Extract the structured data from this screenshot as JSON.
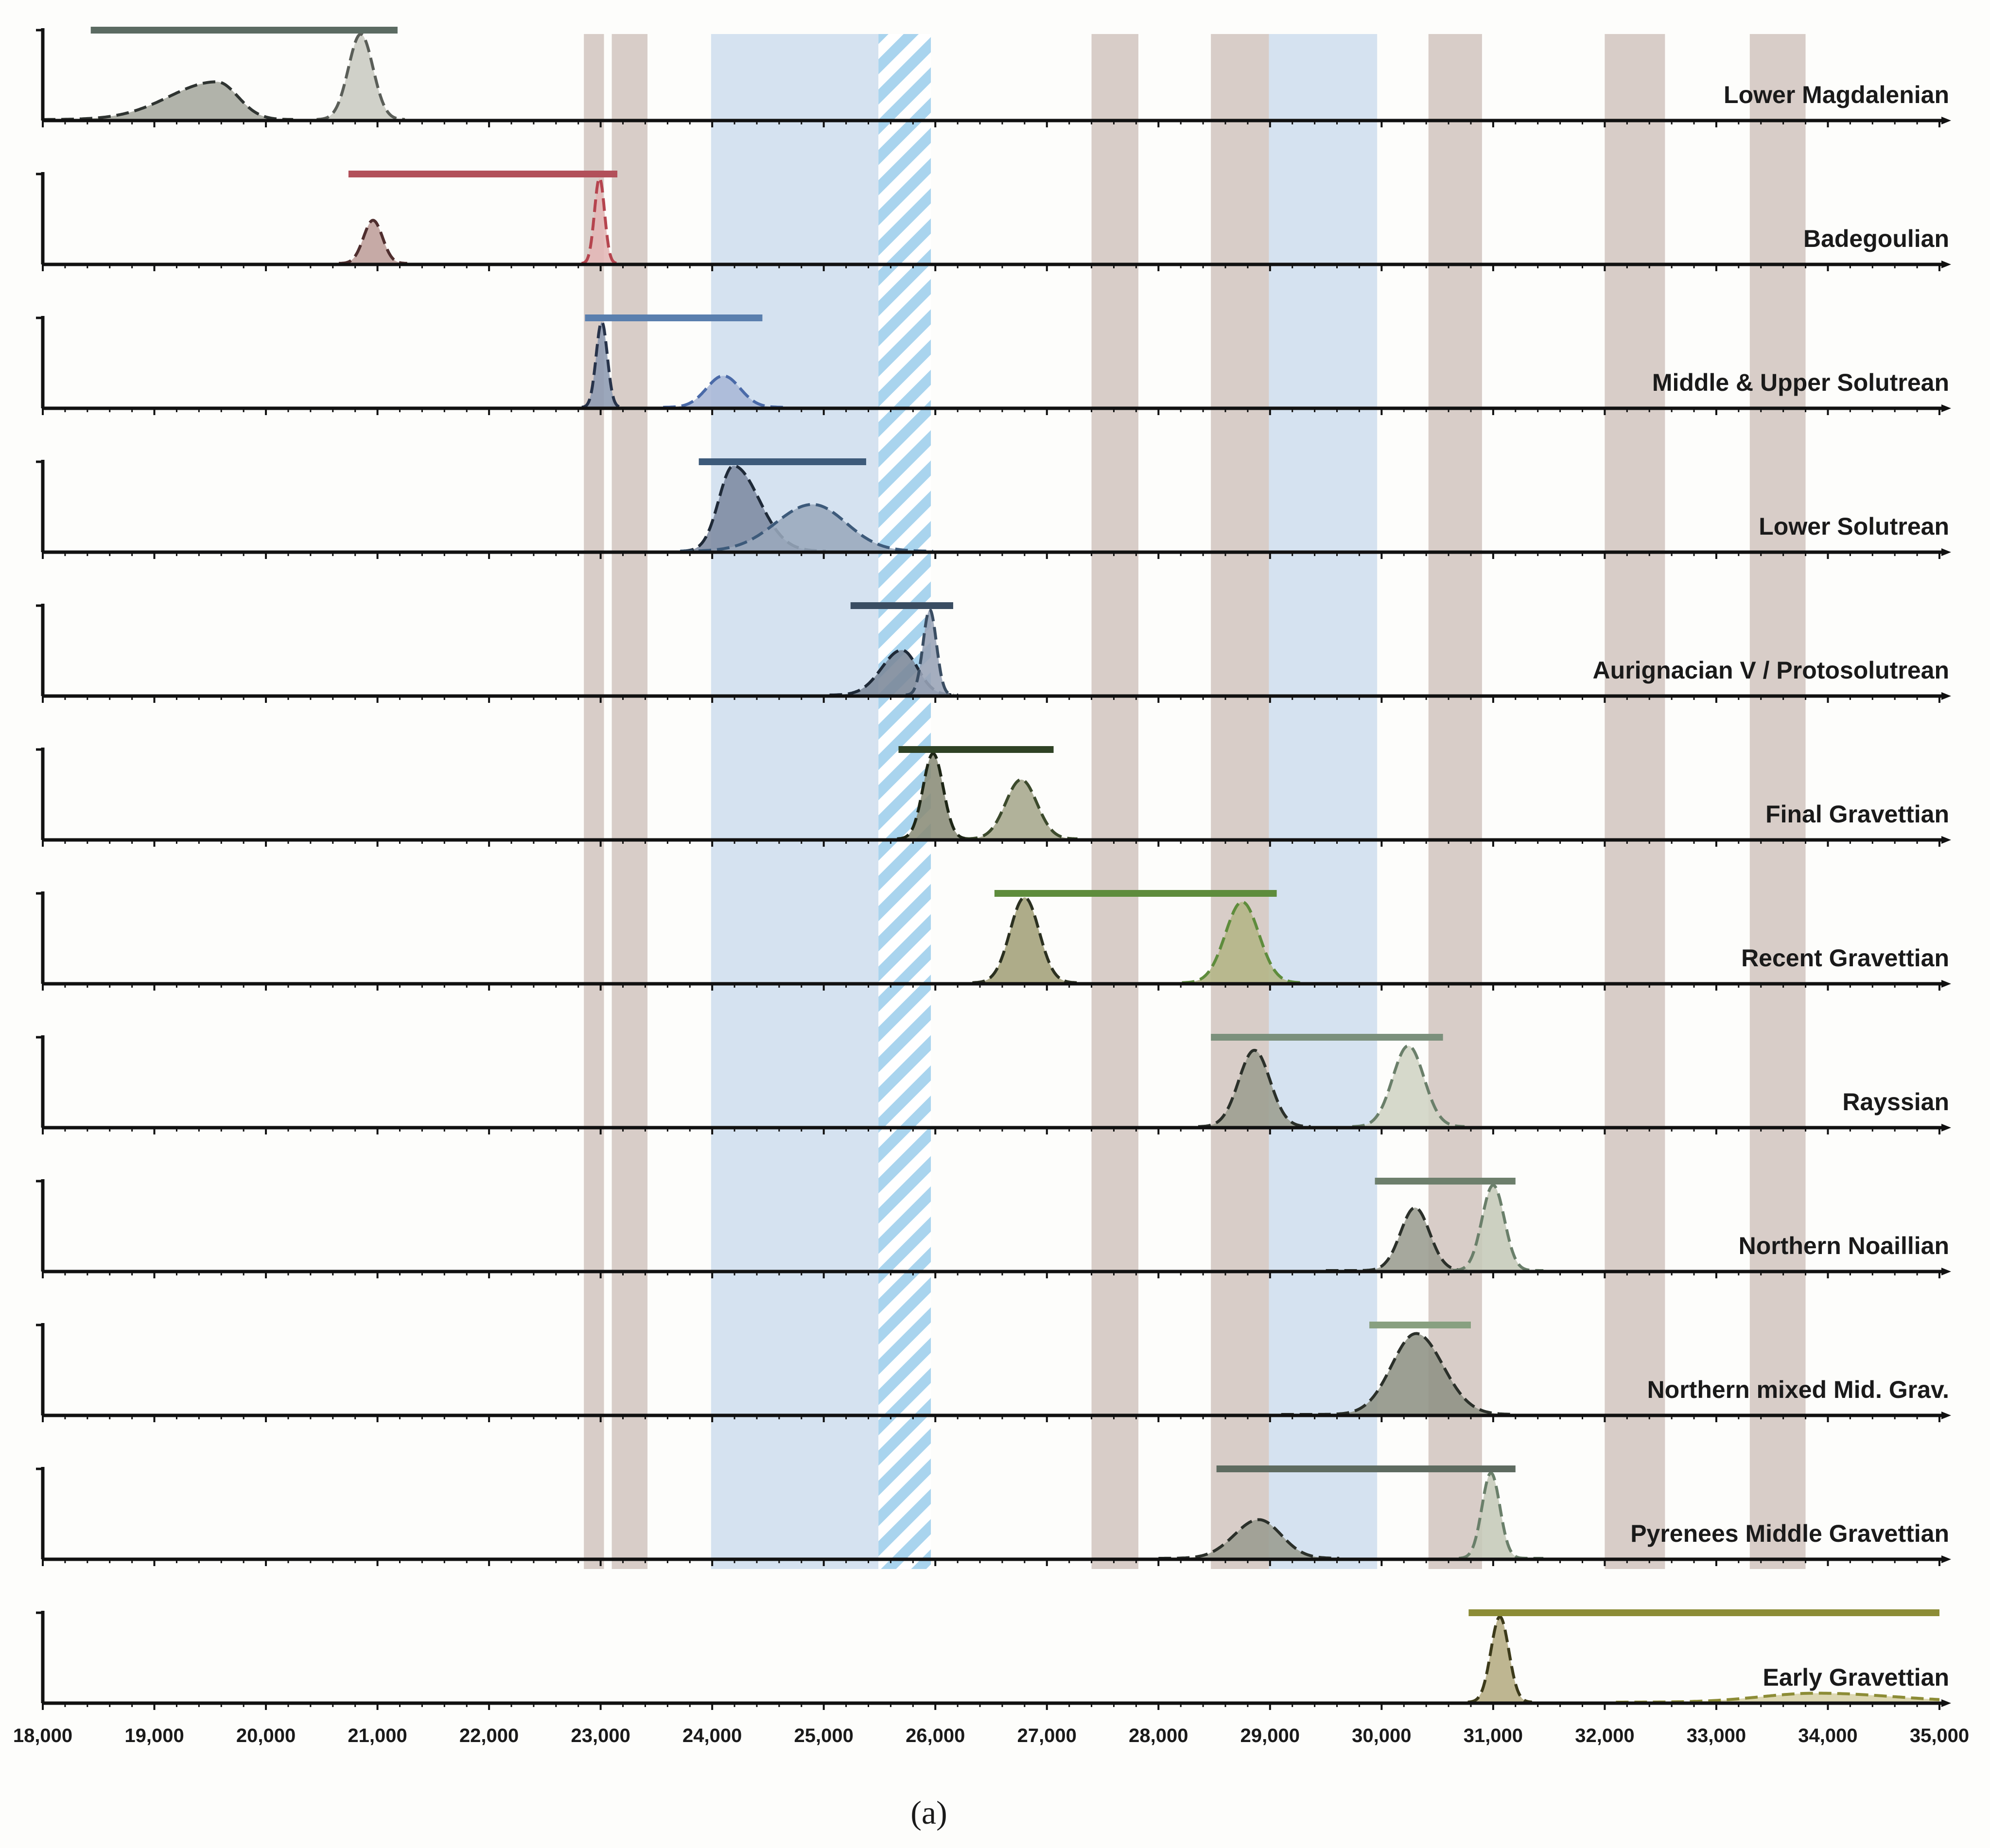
{
  "chart_data": {
    "type": "area",
    "caption": "(a)",
    "x_axis": {
      "min": 18000,
      "max": 35000,
      "ticks": [
        18000,
        19000,
        20000,
        21000,
        22000,
        23000,
        24000,
        25000,
        26000,
        27000,
        28000,
        29000,
        30000,
        31000,
        32000,
        33000,
        34000,
        35000
      ],
      "tick_labels": [
        "18,000",
        "19,000",
        "20,000",
        "21,000",
        "22,000",
        "23,000",
        "24,000",
        "25,000",
        "26,000",
        "27,000",
        "28,000",
        "29,000",
        "30,000",
        "31,000",
        "32,000",
        "33,000",
        "34,000",
        "35,000"
      ],
      "minor_step": 200
    },
    "background_bands": [
      {
        "kind": "stadial",
        "start": 22850,
        "end": 23030,
        "color": "#d8cdc8"
      },
      {
        "kind": "stadial",
        "start": 23100,
        "end": 23420,
        "color": "#d8cdc8"
      },
      {
        "kind": "blue-interval",
        "start": 23990,
        "end": 25490,
        "color": "#d5e2f0"
      },
      {
        "kind": "hatched-interval",
        "start": 25490,
        "end": 25960,
        "color": "#a9d4ee"
      },
      {
        "kind": "stadial",
        "start": 27400,
        "end": 27820,
        "color": "#d8cdc8"
      },
      {
        "kind": "stadial",
        "start": 28470,
        "end": 28990,
        "color": "#d8cdc8"
      },
      {
        "kind": "blue-interval",
        "start": 28990,
        "end": 29960,
        "color": "#d5e2f0"
      },
      {
        "kind": "stadial",
        "start": 30420,
        "end": 30900,
        "color": "#d8cdc8"
      },
      {
        "kind": "stadial",
        "start": 32000,
        "end": 32540,
        "color": "#d8cdc8"
      },
      {
        "kind": "stadial",
        "start": 33300,
        "end": 33800,
        "color": "#d8cdc8"
      }
    ],
    "series": [
      {
        "name": "Lower Magdalenian",
        "bar": {
          "start": 18430,
          "end": 21180,
          "color": "#5b6b62"
        },
        "curves": [
          {
            "peak": 19560,
            "sigma_left": 430,
            "sigma_right": 190,
            "height": 0.42,
            "fill": "#a6a89e",
            "stroke": "#2f3431",
            "tail_start": 18000
          },
          {
            "peak": 20850,
            "sigma_left": 110,
            "sigma_right": 110,
            "height": 0.95,
            "fill": "#c9cbc1",
            "stroke": "#5a5e58"
          }
        ]
      },
      {
        "name": "Badegoulian",
        "bar": {
          "start": 20740,
          "end": 23150,
          "color": "#b2505a"
        },
        "curves": [
          {
            "peak": 20960,
            "sigma_left": 85,
            "sigma_right": 85,
            "height": 0.48,
            "fill": "#be9e9a",
            "stroke": "#4f2e2e"
          },
          {
            "peak": 22990,
            "sigma_left": 45,
            "sigma_right": 45,
            "height": 0.95,
            "fill": "#e2b7b6",
            "stroke": "#b5444e"
          }
        ]
      },
      {
        "name": "Middle & Upper Solutrean",
        "bar": {
          "start": 22860,
          "end": 24450,
          "color": "#5a7fae"
        },
        "curves": [
          {
            "peak": 23010,
            "sigma_left": 50,
            "sigma_right": 50,
            "height": 0.95,
            "fill": "#8d9bb2",
            "stroke": "#27334a"
          },
          {
            "peak": 24100,
            "sigma_left": 150,
            "sigma_right": 150,
            "height": 0.35,
            "fill": "#a8b7d6",
            "stroke": "#4a6aa8"
          }
        ]
      },
      {
        "name": "Lower Solutrean",
        "bar": {
          "start": 23880,
          "end": 25380,
          "color": "#3d5a7a"
        },
        "curves": [
          {
            "peak": 24190,
            "sigma_left": 130,
            "sigma_right": 230,
            "height": 0.95,
            "fill": "#7d8aa0",
            "stroke": "#1f2a38"
          },
          {
            "peak": 24900,
            "sigma_left": 330,
            "sigma_right": 300,
            "height": 0.52,
            "fill": "#9aa8bc",
            "stroke": "#3d5a7a"
          }
        ]
      },
      {
        "name": "Aurignacian V / Protosolutrean",
        "bar": {
          "start": 25240,
          "end": 26160,
          "color": "#3a4d62"
        },
        "curves": [
          {
            "peak": 25700,
            "sigma_left": 180,
            "sigma_right": 140,
            "height": 0.5,
            "fill": "#7b8799",
            "stroke": "#1f2a38"
          },
          {
            "peak": 25950,
            "sigma_left": 60,
            "sigma_right": 60,
            "height": 0.95,
            "fill": "#98a3b6",
            "stroke": "#3a4d62"
          }
        ]
      },
      {
        "name": "Final Gravettian",
        "bar": {
          "start": 25670,
          "end": 27060,
          "color": "#2f4224"
        },
        "curves": [
          {
            "peak": 25980,
            "sigma_left": 90,
            "sigma_right": 90,
            "height": 0.95,
            "fill": "#8a8c78",
            "stroke": "#1e2616"
          },
          {
            "peak": 26770,
            "sigma_left": 140,
            "sigma_right": 140,
            "height": 0.66,
            "fill": "#a6a78c",
            "stroke": "#3c4a2c"
          }
        ]
      },
      {
        "name": "Recent Gravettian",
        "bar": {
          "start": 26530,
          "end": 29060,
          "color": "#5e8c3c"
        },
        "curves": [
          {
            "peak": 26800,
            "sigma_left": 130,
            "sigma_right": 130,
            "height": 0.95,
            "fill": "#a3a179",
            "stroke": "#2b3020"
          },
          {
            "peak": 28750,
            "sigma_left": 150,
            "sigma_right": 150,
            "height": 0.9,
            "fill": "#b3b585",
            "stroke": "#5e8c3c"
          }
        ]
      },
      {
        "name": "Rayssian",
        "bar": {
          "start": 28470,
          "end": 30550,
          "color": "#7b907c"
        },
        "curves": [
          {
            "peak": 28860,
            "sigma_left": 140,
            "sigma_right": 140,
            "height": 0.85,
            "fill": "#9c9e90",
            "stroke": "#2b302a"
          },
          {
            "peak": 30240,
            "sigma_left": 140,
            "sigma_right": 140,
            "height": 0.9,
            "fill": "#d0d4c4",
            "stroke": "#6a7f6a"
          }
        ]
      },
      {
        "name": "Northern Noaillian",
        "bar": {
          "start": 29940,
          "end": 31200,
          "color": "#6d7f6c"
        },
        "curves": [
          {
            "peak": 30300,
            "sigma_left": 130,
            "sigma_right": 130,
            "height": 0.7,
            "fill": "#9a9c90",
            "stroke": "#2b302a",
            "tail_start": 29500
          },
          {
            "peak": 31000,
            "sigma_left": 100,
            "sigma_right": 100,
            "height": 0.95,
            "fill": "#c5c9b8",
            "stroke": "#6a7f6a",
            "tail_end": 31450
          }
        ]
      },
      {
        "name": "Northern mixed Mid. Grav.",
        "bar": {
          "start": 29890,
          "end": 30800,
          "color": "#88a080"
        },
        "curves": [
          {
            "peak": 30310,
            "sigma_left": 220,
            "sigma_right": 240,
            "height": 0.9,
            "fill": "#8e9284",
            "stroke": "#2b302a",
            "tail_start": 29100
          }
        ]
      },
      {
        "name": "Pyrenees Middle Gravettian",
        "bar": {
          "start": 28520,
          "end": 31200,
          "color": "#5e6b60"
        },
        "curves": [
          {
            "peak": 28900,
            "sigma_left": 220,
            "sigma_right": 200,
            "height": 0.43,
            "fill": "#9a9c90",
            "stroke": "#2b302a",
            "tail_start": 28000
          },
          {
            "peak": 30980,
            "sigma_left": 80,
            "sigma_right": 80,
            "height": 0.95,
            "fill": "#c5c9b8",
            "stroke": "#6a7f6a",
            "tail_end": 31450
          }
        ]
      },
      {
        "name": "Early Gravettian",
        "bar": {
          "start": 30780,
          "end": 35000,
          "color": "#8c8c36"
        },
        "curves": [
          {
            "peak": 31060,
            "sigma_left": 80,
            "sigma_right": 80,
            "height": 0.95,
            "fill": "#b5ac82",
            "stroke": "#3c3a1a"
          },
          {
            "peak": 33900,
            "sigma_left": 500,
            "sigma_right": 700,
            "height": 0.1,
            "fill": "#d8d3a8",
            "stroke": "#8c8c36"
          }
        ]
      }
    ]
  }
}
